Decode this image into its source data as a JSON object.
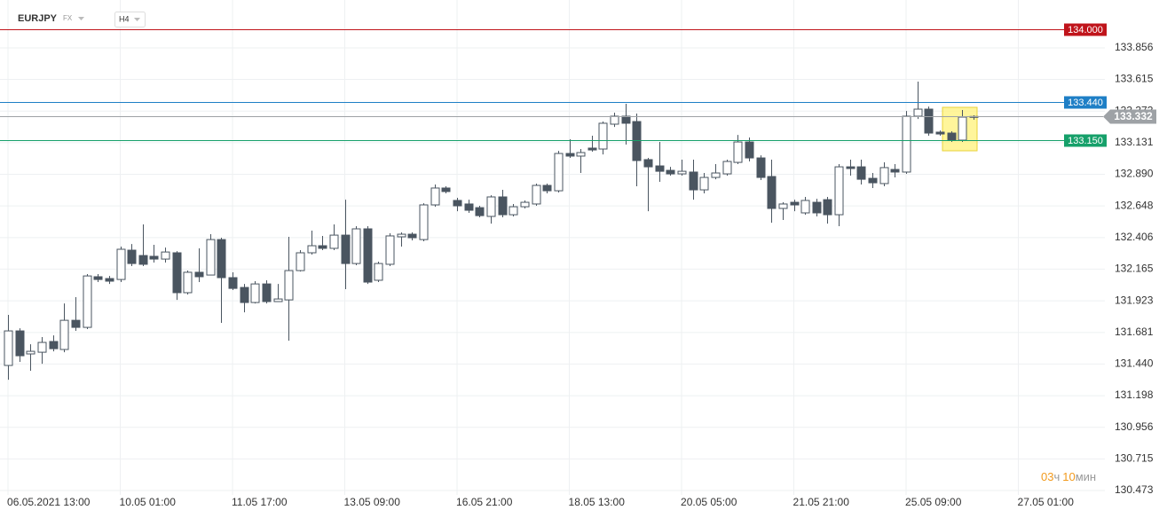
{
  "header": {
    "symbol": "EURJPY",
    "market": "FX",
    "timeframe": "H4"
  },
  "countdown": {
    "hours": "03",
    "hours_unit": "ч",
    "minutes": "10",
    "minutes_unit": "мин"
  },
  "chart_data": {
    "type": "candlestick",
    "up_color": "#ffffff",
    "down_color": "#4a5560",
    "border_color": "#4a5560",
    "grid": true,
    "ylim": [
      130.385,
      134.222
    ],
    "yticks": [
      133.856,
      133.615,
      133.373,
      133.131,
      {
        "value": 132.89,
        "label": "132.890"
      },
      132.648,
      132.406,
      132.165,
      131.923,
      131.681,
      {
        "value": 131.44,
        "label": "131.440"
      },
      131.198,
      130.956,
      130.715,
      130.473
    ],
    "categories": [
      "06.05.2021 13:00",
      null,
      null,
      null,
      null,
      null,
      null,
      null,
      null,
      null,
      "10.05 01:00",
      null,
      null,
      null,
      null,
      null,
      null,
      null,
      null,
      null,
      "11.05 17:00",
      null,
      null,
      null,
      null,
      null,
      null,
      null,
      null,
      null,
      "13.05 09:00",
      null,
      null,
      null,
      null,
      null,
      null,
      null,
      null,
      null,
      "16.05 21:00",
      null,
      null,
      null,
      null,
      null,
      null,
      null,
      null,
      null,
      "18.05 13:00",
      null,
      null,
      null,
      null,
      null,
      null,
      null,
      null,
      null,
      "20.05 05:00",
      null,
      null,
      null,
      null,
      null,
      null,
      null,
      null,
      null,
      "21.05 21:00",
      null,
      null,
      null,
      null,
      null,
      null,
      null,
      null,
      null,
      "25.05 09:00",
      null,
      null,
      null,
      null,
      null,
      null,
      null,
      null,
      null,
      "27.05 01:00",
      null
    ],
    "open": [
      131.429,
      131.693,
      131.517,
      131.53,
      131.612,
      131.551,
      131.774,
      131.72,
      132.107,
      132.093,
      132.086,
      132.31,
      132.269,
      132.263,
      132.242,
      132.29,
      131.985,
      132.141,
      132.12,
      132.391,
      132.1,
      132.025,
      131.91,
      132.052,
      131.917,
      131.93,
      132.154,
      132.29,
      132.344,
      132.324,
      132.425,
      132.208,
      132.473,
      132.08,
      132.202,
      132.412,
      132.432,
      132.391,
      132.656,
      132.785,
      132.69,
      132.663,
      132.635,
      132.568,
      132.717,
      132.581,
      132.642,
      132.663,
      132.805,
      132.764,
      133.049,
      133.029,
      133.09,
      133.083,
      133.273,
      133.334,
      133.293,
      133.002,
      132.954,
      132.92,
      132.893,
      132.907,
      132.771,
      132.866,
      132.893,
      132.981,
      133.137,
      133.015,
      132.873,
      132.629,
      132.676,
      132.595,
      132.676,
      132.696,
      132.581,
      132.947,
      132.947,
      132.859,
      132.819,
      132.927,
      132.907,
      133.334,
      133.388,
      133.212,
      133.205,
      133.151,
      133.327,
      null,
      null,
      null,
      null,
      null
    ],
    "high": [
      131.815,
      131.713,
      131.591,
      131.646,
      131.659,
      131.903,
      131.951,
      132.127,
      132.127,
      132.113,
      132.337,
      132.357,
      132.507,
      132.351,
      132.33,
      132.303,
      132.154,
      132.324,
      132.432,
      132.405,
      132.141,
      132.052,
      132.073,
      132.08,
      132.052,
      132.412,
      132.31,
      132.459,
      132.419,
      132.507,
      132.696,
      132.493,
      132.493,
      132.222,
      132.439,
      132.446,
      132.446,
      132.669,
      132.812,
      132.798,
      132.71,
      132.696,
      132.649,
      132.73,
      132.771,
      132.663,
      132.69,
      132.819,
      132.819,
      133.069,
      133.158,
      133.083,
      133.185,
      133.293,
      133.361,
      133.429,
      133.354,
      133.015,
      133.137,
      132.947,
      133.002,
      133.002,
      132.9,
      132.968,
      133.002,
      133.191,
      133.171,
      133.035,
      133.002,
      132.676,
      132.696,
      132.717,
      132.703,
      132.717,
      132.968,
      133.002,
      133.002,
      132.9,
      132.981,
      132.968,
      133.374,
      133.598,
      133.408,
      133.225,
      133.219,
      133.381,
      133.341,
      null,
      null,
      null,
      null,
      null
    ],
    "low": [
      131.32,
      131.456,
      131.388,
      131.442,
      131.537,
      131.53,
      131.693,
      131.707,
      132.066,
      132.052,
      132.066,
      132.188,
      132.188,
      132.215,
      132.215,
      131.93,
      131.971,
      132.066,
      132.12,
      131.754,
      132.005,
      131.835,
      131.903,
      131.903,
      131.917,
      131.618,
      132.147,
      132.276,
      132.31,
      132.31,
      132.012,
      132.195,
      132.052,
      132.066,
      132.188,
      132.337,
      132.385,
      132.378,
      132.642,
      132.744,
      132.608,
      132.595,
      132.561,
      132.513,
      132.561,
      132.568,
      132.629,
      132.649,
      132.744,
      132.751,
      133.015,
      132.9,
      133.063,
      133.042,
      133.252,
      133.117,
      132.798,
      132.608,
      132.832,
      132.88,
      132.88,
      132.696,
      132.744,
      132.852,
      132.88,
      132.968,
      132.988,
      132.846,
      132.52,
      132.541,
      132.608,
      132.581,
      132.568,
      132.513,
      132.493,
      132.88,
      132.812,
      132.785,
      132.798,
      132.866,
      132.893,
      133.313,
      133.185,
      133.185,
      133.137,
      133.137,
      133.307,
      null,
      null,
      null,
      null,
      null
    ],
    "close": [
      131.693,
      131.503,
      131.537,
      131.605,
      131.557,
      131.774,
      131.72,
      132.113,
      132.086,
      132.073,
      132.317,
      132.208,
      132.202,
      132.242,
      132.296,
      131.985,
      132.141,
      132.107,
      132.391,
      132.1,
      132.018,
      131.91,
      132.052,
      131.917,
      131.937,
      132.154,
      132.29,
      132.344,
      132.324,
      132.425,
      132.208,
      132.473,
      132.066,
      132.208,
      132.419,
      132.432,
      132.405,
      132.656,
      132.785,
      132.758,
      132.649,
      132.615,
      132.574,
      132.717,
      132.581,
      132.642,
      132.676,
      132.805,
      132.764,
      133.049,
      133.029,
      133.056,
      133.076,
      133.28,
      133.334,
      133.28,
      132.995,
      132.947,
      132.913,
      132.893,
      132.913,
      132.771,
      132.866,
      132.9,
      132.988,
      133.137,
      133.015,
      132.866,
      132.629,
      132.663,
      132.656,
      132.69,
      132.595,
      132.581,
      132.947,
      132.934,
      132.852,
      132.825,
      132.941,
      132.907,
      133.334,
      133.388,
      133.205,
      133.198,
      133.151,
      133.327,
      133.332,
      null,
      null,
      null,
      null,
      null
    ],
    "levels": [
      {
        "value": 134,
        "label": "134.000",
        "color": "#c0141b"
      },
      {
        "value": 133.44,
        "label": "133.440",
        "color": "#1e7fc6"
      },
      {
        "value": 133.15,
        "label": "133.150",
        "color": "#16a06a"
      }
    ],
    "current_price": {
      "value": 133.332,
      "label": "133.332",
      "color": "#9ea2a6"
    }
  }
}
